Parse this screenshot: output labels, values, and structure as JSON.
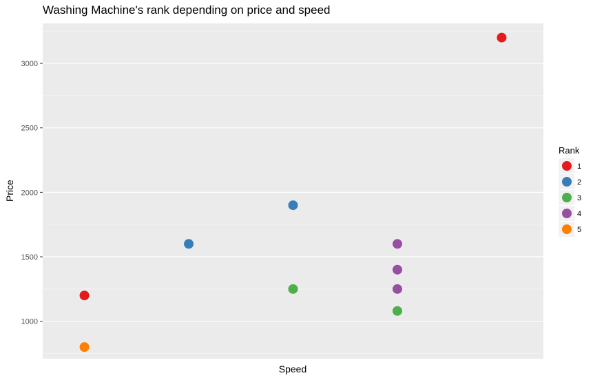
{
  "chart_data": {
    "type": "scatter",
    "title": "Washing Machine's rank depending on price and speed",
    "xlabel": "Speed",
    "ylabel": "Price",
    "ylim": [
      710,
      3310
    ],
    "xlim": [
      0.6,
      5.4
    ],
    "yticks": [
      1000,
      1500,
      2000,
      2500,
      3000
    ],
    "yticks_labels": [
      "1000",
      "1500",
      "2000",
      "2500",
      "3000"
    ],
    "x_tick_labels_shown": false,
    "grid": true,
    "legend": {
      "title": "Rank",
      "position": "right",
      "entries": [
        {
          "label": "1",
          "color": "#E41A1C"
        },
        {
          "label": "2",
          "color": "#377EB8"
        },
        {
          "label": "3",
          "color": "#4DAF4A"
        },
        {
          "label": "4",
          "color": "#984EA3"
        },
        {
          "label": "5",
          "color": "#FF7F00"
        }
      ]
    },
    "points": [
      {
        "x": 1,
        "y": 1200,
        "rank": "1"
      },
      {
        "x": 1,
        "y": 800,
        "rank": "5"
      },
      {
        "x": 2,
        "y": 1600,
        "rank": "2"
      },
      {
        "x": 3,
        "y": 1900,
        "rank": "2"
      },
      {
        "x": 3,
        "y": 1250,
        "rank": "3"
      },
      {
        "x": 4,
        "y": 1600,
        "rank": "4"
      },
      {
        "x": 4,
        "y": 1400,
        "rank": "4"
      },
      {
        "x": 4,
        "y": 1250,
        "rank": "4"
      },
      {
        "x": 4,
        "y": 1080,
        "rank": "3"
      },
      {
        "x": 5,
        "y": 3200,
        "rank": "1"
      }
    ]
  },
  "colors": {
    "panel_background": "#EBEBEB",
    "grid_major": "#FFFFFF",
    "grid_minor": "#F5F5F5"
  }
}
